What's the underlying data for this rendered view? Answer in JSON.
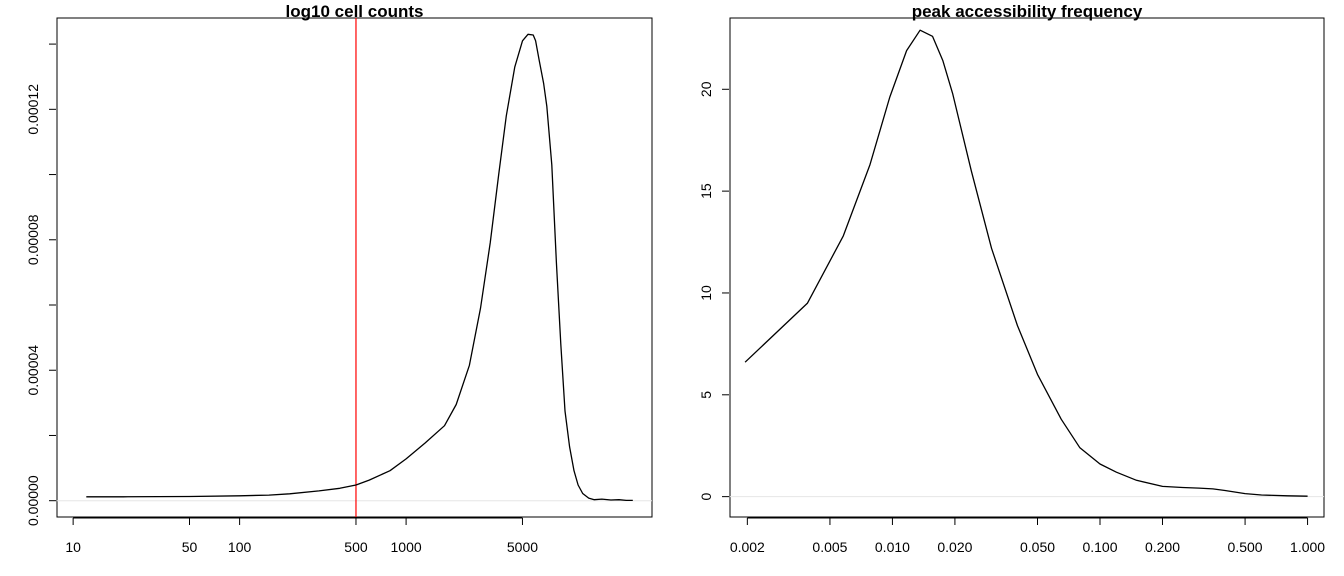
{
  "chart_data": [
    {
      "type": "line",
      "title": "log10 cell counts",
      "xlabel": "",
      "ylabel": "",
      "x_scale": "log10",
      "xlim": [
        8,
        30000
      ],
      "ylim": [
        -5e-06,
        0.000148
      ],
      "x_ticks": [
        10,
        50,
        100,
        500,
        1000,
        5000
      ],
      "x_tick_labels": [
        "10",
        "50",
        "100",
        "500",
        "1000",
        "5000"
      ],
      "y_ticks": [
        0,
        2e-05,
        4e-05,
        6e-05,
        8e-05,
        0.0001,
        0.00012,
        0.00014
      ],
      "y_tick_labels": [
        "0.00000",
        "",
        "0.00004",
        "",
        "0.00008",
        "",
        "0.00012",
        ""
      ],
      "grid": false,
      "zero_line": true,
      "vline": {
        "x": 500,
        "color": "#ff0000"
      },
      "series": [
        {
          "color": "#000000",
          "x": [
            12,
            20,
            50,
            100,
            150,
            200,
            300,
            400,
            500,
            600,
            800,
            1000,
            1300,
            1700,
            2000,
            2400,
            2800,
            3200,
            3600,
            4000,
            4500,
            5000,
            5400,
            5800,
            6000,
            6300,
            6700,
            7000,
            7500,
            8000,
            8500,
            9000,
            9600,
            10200,
            10800,
            11500,
            12500,
            13500,
            15000,
            17000,
            19000,
            21000,
            23000
          ],
          "y": [
            1.2e-06,
            1.2e-06,
            1.3e-06,
            1.5e-06,
            1.7e-06,
            2.1e-06,
            3e-06,
            3.8e-06,
            4.8e-06,
            6.3e-06,
            9.2e-06,
            1.28e-05,
            1.77e-05,
            2.3e-05,
            2.95e-05,
            4.15e-05,
            5.9e-05,
            7.9e-05,
            0.0001,
            0.000118,
            0.000133,
            0.000141,
            0.000143,
            0.0001428,
            0.000141,
            0.000135,
            0.000128,
            0.000121,
            0.000103,
            7.3e-05,
            4.8e-05,
            2.75e-05,
            1.65e-05,
            9.2e-06,
            4.8e-06,
            2.2e-06,
            8e-07,
            3e-07,
            5e-07,
            2e-07,
            3e-07,
            1e-07,
            1e-07
          ]
        }
      ]
    },
    {
      "type": "line",
      "title": "peak accessibility frequency",
      "xlabel": "",
      "ylabel": "",
      "x_scale": "log10",
      "xlim": [
        0.00165,
        1.2
      ],
      "ylim": [
        -1,
        23.5
      ],
      "x_ticks": [
        0.002,
        0.005,
        0.01,
        0.02,
        0.05,
        0.1,
        0.2,
        0.5,
        1
      ],
      "x_tick_labels": [
        "0.002",
        "0.005",
        "0.010",
        "0.020",
        "0.050",
        "0.100",
        "0.200",
        "0.500",
        "1.000"
      ],
      "y_ticks": [
        0,
        5,
        10,
        15,
        20
      ],
      "y_tick_labels": [
        "0",
        "5",
        "10",
        "15",
        "20"
      ],
      "grid": false,
      "zero_line": true,
      "series": [
        {
          "color": "#000000",
          "x": [
            0.00195,
            0.0039,
            0.0058,
            0.0078,
            0.0097,
            0.0117,
            0.0136,
            0.0156,
            0.0175,
            0.0195,
            0.024,
            0.03,
            0.04,
            0.05,
            0.065,
            0.08,
            0.1,
            0.12,
            0.15,
            0.2,
            0.25,
            0.3,
            0.35,
            0.4,
            0.5,
            0.6,
            0.8,
            1.0
          ],
          "y": [
            6.6,
            9.5,
            12.8,
            16.3,
            19.6,
            21.9,
            22.9,
            22.6,
            21.4,
            19.8,
            16.0,
            12.2,
            8.4,
            6.0,
            3.8,
            2.4,
            1.6,
            1.2,
            0.8,
            0.5,
            0.45,
            0.42,
            0.38,
            0.3,
            0.15,
            0.08,
            0.04,
            0.02
          ]
        }
      ]
    }
  ]
}
